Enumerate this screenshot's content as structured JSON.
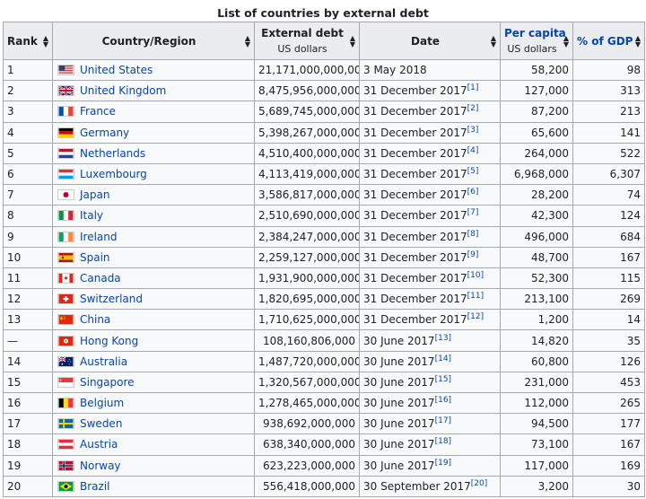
{
  "caption": "List of countries by external debt",
  "headers": {
    "rank": "Rank",
    "country": "Country/Region",
    "debt_main": "External debt",
    "debt_sub": "US dollars",
    "date": "Date",
    "percap_main": "Per capita",
    "percap_sub": "US dollars",
    "gdp": "% of GDP"
  },
  "rows": [
    {
      "rank": "1",
      "country": "United States",
      "flag": "us-flag",
      "debt": "21,171,000,000,000",
      "date": "3 May 2018",
      "ref": "",
      "percap": "58,200",
      "gdp": "98"
    },
    {
      "rank": "2",
      "country": "United Kingdom",
      "flag": "uk-flag",
      "debt": "8,475,956,000,000",
      "date": "31 December 2017",
      "ref": "[1]",
      "percap": "127,000",
      "gdp": "313"
    },
    {
      "rank": "3",
      "country": "France",
      "flag": "france-flag",
      "debt": "5,689,745,000,000",
      "date": "31 December 2017",
      "ref": "[2]",
      "percap": "87,200",
      "gdp": "213"
    },
    {
      "rank": "4",
      "country": "Germany",
      "flag": "germany-flag",
      "debt": "5,398,267,000,000",
      "date": "31 December 2017",
      "ref": "[3]",
      "percap": "65,600",
      "gdp": "141"
    },
    {
      "rank": "5",
      "country": "Netherlands",
      "flag": "netherlands-flag",
      "debt": "4,510,400,000,000",
      "date": "31 December 2017",
      "ref": "[4]",
      "percap": "264,000",
      "gdp": "522"
    },
    {
      "rank": "6",
      "country": "Luxembourg",
      "flag": "luxembourg-flag",
      "debt": "4,113,419,000,000",
      "date": "31 December 2017",
      "ref": "[5]",
      "percap": "6,968,000",
      "gdp": "6,307"
    },
    {
      "rank": "7",
      "country": "Japan",
      "flag": "japan-flag",
      "debt": "3,586,817,000,000",
      "date": "31 December 2017",
      "ref": "[6]",
      "percap": "28,200",
      "gdp": "74"
    },
    {
      "rank": "8",
      "country": "Italy",
      "flag": "italy-flag",
      "debt": "2,510,690,000,000",
      "date": "31 December 2017",
      "ref": "[7]",
      "percap": "42,300",
      "gdp": "124"
    },
    {
      "rank": "9",
      "country": "Ireland",
      "flag": "ireland-flag",
      "debt": "2,384,247,000,000",
      "date": "31 December 2017",
      "ref": "[8]",
      "percap": "496,000",
      "gdp": "684"
    },
    {
      "rank": "10",
      "country": "Spain",
      "flag": "spain-flag",
      "debt": "2,259,127,000,000",
      "date": "31 December 2017",
      "ref": "[9]",
      "percap": "48,700",
      "gdp": "167"
    },
    {
      "rank": "11",
      "country": "Canada",
      "flag": "canada-flag",
      "debt": "1,931,900,000,000",
      "date": "31 December 2017",
      "ref": "[10]",
      "percap": "52,300",
      "gdp": "115"
    },
    {
      "rank": "12",
      "country": "Switzerland",
      "flag": "switzerland-flag",
      "debt": "1,820,695,000,000",
      "date": "31 December 2017",
      "ref": "[11]",
      "percap": "213,100",
      "gdp": "269"
    },
    {
      "rank": "13",
      "country": "China",
      "flag": "china-flag",
      "debt": "1,710,625,000,000",
      "date": "31 December 2017",
      "ref": "[12]",
      "percap": "1,200",
      "gdp": "14"
    },
    {
      "rank": "—",
      "country": "Hong Kong",
      "flag": "hongkong-flag",
      "debt": "108,160,806,000",
      "date": "30 June 2017",
      "ref": "[13]",
      "percap": "14,820",
      "gdp": "35"
    },
    {
      "rank": "14",
      "country": "Australia",
      "flag": "australia-flag",
      "debt": "1,487,720,000,000",
      "date": "30 June 2017",
      "ref": "[14]",
      "percap": "60,800",
      "gdp": "126"
    },
    {
      "rank": "15",
      "country": "Singapore",
      "flag": "singapore-flag",
      "debt": "1,320,567,000,000",
      "date": "30 June 2017",
      "ref": "[15]",
      "percap": "231,000",
      "gdp": "453"
    },
    {
      "rank": "16",
      "country": "Belgium",
      "flag": "belgium-flag",
      "debt": "1,278,465,000,000",
      "date": "30 June 2017",
      "ref": "[16]",
      "percap": "112,000",
      "gdp": "265"
    },
    {
      "rank": "17",
      "country": "Sweden",
      "flag": "sweden-flag",
      "debt": "938,692,000,000",
      "date": "30 June 2017",
      "ref": "[17]",
      "percap": "94,500",
      "gdp": "177"
    },
    {
      "rank": "18",
      "country": "Austria",
      "flag": "austria-flag",
      "debt": "638,340,000,000",
      "date": "30 June 2017",
      "ref": "[18]",
      "percap": "73,100",
      "gdp": "167"
    },
    {
      "rank": "19",
      "country": "Norway",
      "flag": "norway-flag",
      "debt": "623,223,000,000",
      "date": "30 June 2017",
      "ref": "[19]",
      "percap": "117,000",
      "gdp": "169"
    },
    {
      "rank": "20",
      "country": "Brazil",
      "flag": "brazil-flag",
      "debt": "556,418,000,000",
      "date": "30 September 2017",
      "ref": "[20]",
      "percap": "3,200",
      "gdp": "30"
    }
  ],
  "colors": {
    "link": "#0645ad",
    "header_bg": "#eaecf0",
    "cell_bg": "#f8f9fa",
    "border": "#a2a9b1"
  }
}
